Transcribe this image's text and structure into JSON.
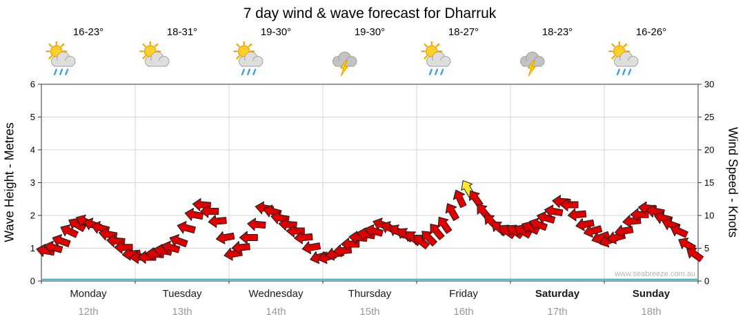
{
  "title": "7 day wind & wave forecast for Dharruk",
  "watermark": "www.seabreeze.com.au",
  "left_axis": {
    "label": "Wave Height - Metres",
    "min": 0,
    "max": 6,
    "ticks": [
      0,
      1,
      2,
      3,
      4,
      5,
      6
    ]
  },
  "right_axis": {
    "label": "Wind Speed - Knots",
    "min": 0,
    "max": 30,
    "ticks": [
      0,
      5,
      10,
      15,
      20,
      25,
      30
    ]
  },
  "days": [
    {
      "name": "Monday",
      "date": "12th",
      "temp": "16-23°",
      "icon": "sun-cloud-rain-icon",
      "bold": false
    },
    {
      "name": "Tuesday",
      "date": "13th",
      "temp": "18-31°",
      "icon": "sun-cloud-icon",
      "bold": false
    },
    {
      "name": "Wednesday",
      "date": "14th",
      "temp": "19-30°",
      "icon": "sun-cloud-rain-icon",
      "bold": false
    },
    {
      "name": "Thursday",
      "date": "15th",
      "temp": "19-30°",
      "icon": "cloud-storm-icon",
      "bold": false
    },
    {
      "name": "Friday",
      "date": "16th",
      "temp": "18-27°",
      "icon": "sun-cloud-rain-icon",
      "bold": false
    },
    {
      "name": "Saturday",
      "date": "17th",
      "temp": "18-23°",
      "icon": "cloud-storm-icon",
      "bold": true
    },
    {
      "name": "Sunday",
      "date": "18th",
      "temp": "16-26°",
      "icon": "sun-cloud-rain-icon",
      "bold": true
    }
  ],
  "chart_data": {
    "type": "scatter",
    "marker": "wind-arrow",
    "title": "7 day wind & wave forecast for Dharruk",
    "categories": [
      "Monday",
      "Tuesday",
      "Wednesday",
      "Thursday",
      "Friday",
      "Saturday",
      "Sunday"
    ],
    "points_per_day": 12,
    "x_hours_step": 2,
    "left_ylabel": "Wave Height - Metres",
    "left_ylim": [
      0,
      6
    ],
    "right_ylabel": "Wind Speed - Knots",
    "right_ylim": [
      0,
      30
    ],
    "grid": true,
    "wind_speed_knots": [
      4,
      4.5,
      5.5,
      7,
      8,
      8.5,
      8,
      7.5,
      6.5,
      5.5,
      4.5,
      3.5,
      3,
      3,
      3.5,
      4,
      4.5,
      5.5,
      7.5,
      9.5,
      11,
      10,
      8.5,
      6,
      3.5,
      4.5,
      6,
      8,
      10.5,
      10,
      9,
      8,
      7,
      6,
      4.5,
      3,
      3,
      3.5,
      4,
      5,
      6,
      6.5,
      7,
      8,
      7.5,
      7,
      6.5,
      6,
      5.5,
      6,
      7,
      8,
      10,
      12,
      13.5,
      12,
      10,
      8.5,
      7.5,
      7,
      7,
      7,
      7.5,
      8,
      9,
      10,
      11.5,
      11,
      9.5,
      8,
      7,
      6,
      5.5,
      6,
      7,
      8.5,
      9.5,
      10.5,
      10,
      9,
      8,
      7,
      5,
      3.5
    ],
    "wind_dir_deg_to": [
      280,
      285,
      290,
      295,
      300,
      295,
      290,
      285,
      280,
      275,
      270,
      265,
      265,
      270,
      275,
      280,
      285,
      290,
      285,
      280,
      275,
      270,
      265,
      260,
      260,
      265,
      270,
      275,
      280,
      285,
      280,
      275,
      270,
      265,
      260,
      255,
      255,
      260,
      265,
      270,
      275,
      280,
      285,
      290,
      295,
      300,
      305,
      310,
      310,
      315,
      320,
      325,
      330,
      335,
      330,
      325,
      320,
      315,
      310,
      305,
      305,
      300,
      295,
      290,
      285,
      280,
      275,
      270,
      265,
      260,
      255,
      250,
      250,
      255,
      260,
      265,
      270,
      275,
      280,
      285,
      290,
      295,
      300,
      305
    ],
    "highlight_index": 54,
    "wave_height_m": 0.05,
    "colors": {
      "arrow": "#dd0000",
      "arrow_outline": "#1a1a1a",
      "highlight_arrow": "#ffe92a",
      "wave_line": "#2ab4c0",
      "grid": "#d4d4d4",
      "axis": "#333333"
    }
  }
}
